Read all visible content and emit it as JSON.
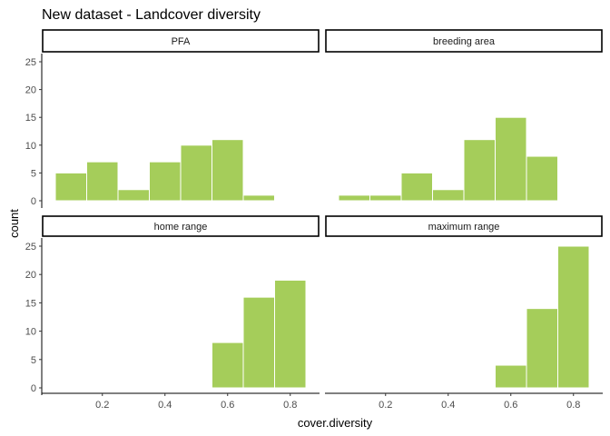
{
  "chart_data": {
    "type": "bar",
    "title": "New dataset - Landcover diversity",
    "xlabel": "cover.diversity",
    "ylabel": "count",
    "xlim": [
      0.05,
      0.85
    ],
    "ylim": [
      0,
      25
    ],
    "x_ticks": [
      "0.2",
      "0.4",
      "0.6",
      "0.8"
    ],
    "y_ticks": [
      "0",
      "5",
      "10",
      "15",
      "20",
      "25"
    ],
    "bin_width": 0.1,
    "grid": false,
    "bar_color": "#a5cd5a",
    "bar_edge_color": "#ffffff",
    "panels": [
      {
        "name": "PFA",
        "bins": [
          0.05,
          0.15,
          0.25,
          0.35,
          0.45,
          0.55,
          0.65,
          0.75
        ],
        "values": [
          5,
          7,
          2,
          7,
          10,
          11,
          1
        ]
      },
      {
        "name": "breeding area",
        "bins": [
          0.05,
          0.15,
          0.25,
          0.35,
          0.45,
          0.55,
          0.65,
          0.75
        ],
        "values": [
          1,
          1,
          5,
          2,
          11,
          15,
          8
        ]
      },
      {
        "name": "home range",
        "bins": [
          0.55,
          0.65,
          0.75,
          0.85
        ],
        "values": [
          8,
          16,
          19
        ]
      },
      {
        "name": "maximum range",
        "bins": [
          0.55,
          0.65,
          0.75,
          0.85
        ],
        "values": [
          4,
          14,
          25
        ]
      }
    ]
  }
}
